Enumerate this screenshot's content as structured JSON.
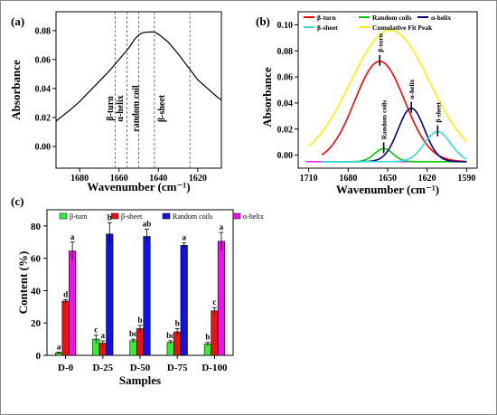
{
  "figure": {
    "panel_labels": [
      "(a)",
      "(b)",
      "(c)"
    ]
  },
  "chart_data": [
    {
      "panel": "(a)",
      "type": "line",
      "xlabel": "Wavenumber (cm⁻¹)",
      "ylabel": "Absorbance",
      "x_reversed": true,
      "xlim": [
        1692,
        1608
      ],
      "ylim": [
        -0.015,
        0.093
      ],
      "xticks": [
        1680,
        1660,
        1640,
        1620
      ],
      "yticks": [
        0.0,
        0.02,
        0.04,
        0.06,
        0.08
      ],
      "ytick_labels": [
        "0.00",
        "0.02",
        "0.04",
        "0.06",
        "0.08"
      ],
      "grid": false,
      "color": "#000000",
      "series": [
        {
          "x": [
            1692,
            1685,
            1680,
            1675,
            1670,
            1665,
            1660,
            1655,
            1652,
            1650,
            1648,
            1645,
            1642,
            1640,
            1635,
            1630,
            1625,
            1620,
            1615,
            1610,
            1608
          ],
          "values": [
            0.0175,
            0.025,
            0.031,
            0.038,
            0.045,
            0.052,
            0.06,
            0.068,
            0.074,
            0.077,
            0.0785,
            0.079,
            0.079,
            0.0775,
            0.072,
            0.064,
            0.055,
            0.046,
            0.04,
            0.034,
            0.032
          ]
        }
      ],
      "annotations": [
        {
          "x": 1663,
          "text": "β-turn"
        },
        {
          "x": 1658,
          "text": "α-helix"
        },
        {
          "x": 1650,
          "text": "random coil"
        },
        {
          "x": 1637,
          "text": "β-sheet"
        }
      ],
      "annotation_lines_x": [
        1662,
        1656,
        1650,
        1642,
        1624
      ]
    },
    {
      "panel": "(b)",
      "type": "line",
      "xlabel": "Wavenumber (cm⁻¹)",
      "ylabel": "Absorbance",
      "x_reversed": true,
      "xlim": [
        1718,
        1582
      ],
      "ylim": [
        -0.01,
        0.11
      ],
      "xticks": [
        1710,
        1680,
        1650,
        1620,
        1590
      ],
      "yticks": [
        0.0,
        0.02,
        0.04,
        0.06,
        0.08,
        0.1
      ],
      "ytick_labels": [
        "0.00",
        "0.02",
        "0.04",
        "0.06",
        "0.08",
        "0.10"
      ],
      "grid": false,
      "legend": {
        "placement": "top",
        "entries": [
          {
            "name": "β-turn",
            "color": "#ff0000"
          },
          {
            "name": "Random coils",
            "color": "#00cc00"
          },
          {
            "name": "α-helix",
            "color": "#00008b"
          },
          {
            "name": "β-sheet",
            "color": "#33dddd"
          },
          {
            "name": "Cumulative Fit Peak",
            "color": "#ffee00"
          }
        ]
      },
      "series": [
        {
          "name": "β-turn",
          "color": "#ff0000",
          "peak_x": 1656,
          "peak_y": 0.072,
          "width": 19,
          "baseline": -0.005
        },
        {
          "name": "Random coils",
          "color": "#00cc00",
          "peak_x": 1653,
          "peak_y": 0.005,
          "width": 7,
          "baseline": -0.005
        },
        {
          "name": "α-helix",
          "color": "#00008b",
          "peak_x": 1632,
          "peak_y": 0.036,
          "width": 10,
          "baseline": -0.005
        },
        {
          "name": "β-sheet",
          "color": "#33dddd",
          "peak_x": 1612,
          "peak_y": 0.018,
          "width": 10,
          "baseline": -0.005
        },
        {
          "name": "Cumulative Fit Peak",
          "color": "#ffee00",
          "peak_x": 1648,
          "peak_y": 0.096,
          "width": 30,
          "baseline": -0.005
        }
      ],
      "flat_line": {
        "color": "#ff00ff",
        "y": -0.005
      },
      "annotations": [
        {
          "text": "β-turn",
          "series": 0
        },
        {
          "text": "Random coils",
          "series": 1
        },
        {
          "text": "α-helix",
          "series": 2
        },
        {
          "text": "β-sheet",
          "series": 3
        }
      ]
    },
    {
      "panel": "(c)",
      "type": "bar",
      "xlabel": "Samples",
      "ylabel": "Content (%)",
      "categories": [
        "D-0",
        "D-25",
        "D-50",
        "D-75",
        "D-100"
      ],
      "ylim": [
        0,
        90
      ],
      "yticks": [
        0,
        20,
        40,
        60,
        80
      ],
      "grid": false,
      "legend": {
        "placement": "top"
      },
      "series": [
        {
          "name": "β-turn",
          "color": "#33ee33",
          "values": [
            1.5,
            10,
            9,
            8,
            7
          ],
          "errors": [
            0.5,
            2.5,
            1,
            1,
            1
          ],
          "letters": [
            "a",
            "c",
            "bc",
            "bc",
            "b"
          ]
        },
        {
          "name": "β-sheet",
          "color": "#ee1111",
          "values": [
            33.5,
            7.5,
            16.5,
            14.5,
            27.5
          ],
          "errors": [
            1,
            1.5,
            2,
            2,
            2
          ],
          "letters": [
            "d",
            "a",
            "b",
            "b",
            "c"
          ]
        },
        {
          "name": "Random coils",
          "color": "#1111ee",
          "values": [
            0,
            75,
            73.5,
            68,
            0
          ],
          "errors": [
            0,
            7,
            4.5,
            1.5,
            0
          ],
          "letters": [
            "",
            "b",
            "ab",
            "a",
            ""
          ]
        },
        {
          "name": "α-helix",
          "color": "#ee11ee",
          "values": [
            64.5,
            0,
            0,
            0,
            70.5
          ],
          "errors": [
            5.5,
            0,
            0,
            0,
            5.5
          ],
          "letters": [
            "a",
            "",
            "",
            "",
            "a"
          ]
        }
      ]
    }
  ]
}
